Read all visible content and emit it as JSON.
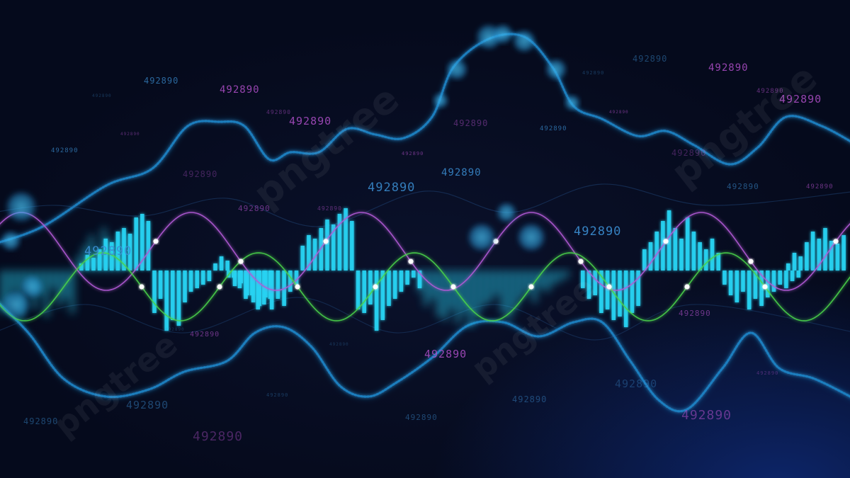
{
  "number_label": "492890",
  "watermark_text": "pngtree",
  "colors": {
    "background": "#050a1c",
    "bars": "#27d3f2",
    "cyan_wave": "#1f86c9",
    "magenta_curve": "#b25ad6",
    "green_curve": "#4ad34a",
    "label_blue": "#3b8fd4",
    "label_magenta": "#b04fc9",
    "bokeh": "#2ab0e8"
  },
  "icons": [
    "pngtree-logo-icon"
  ]
}
